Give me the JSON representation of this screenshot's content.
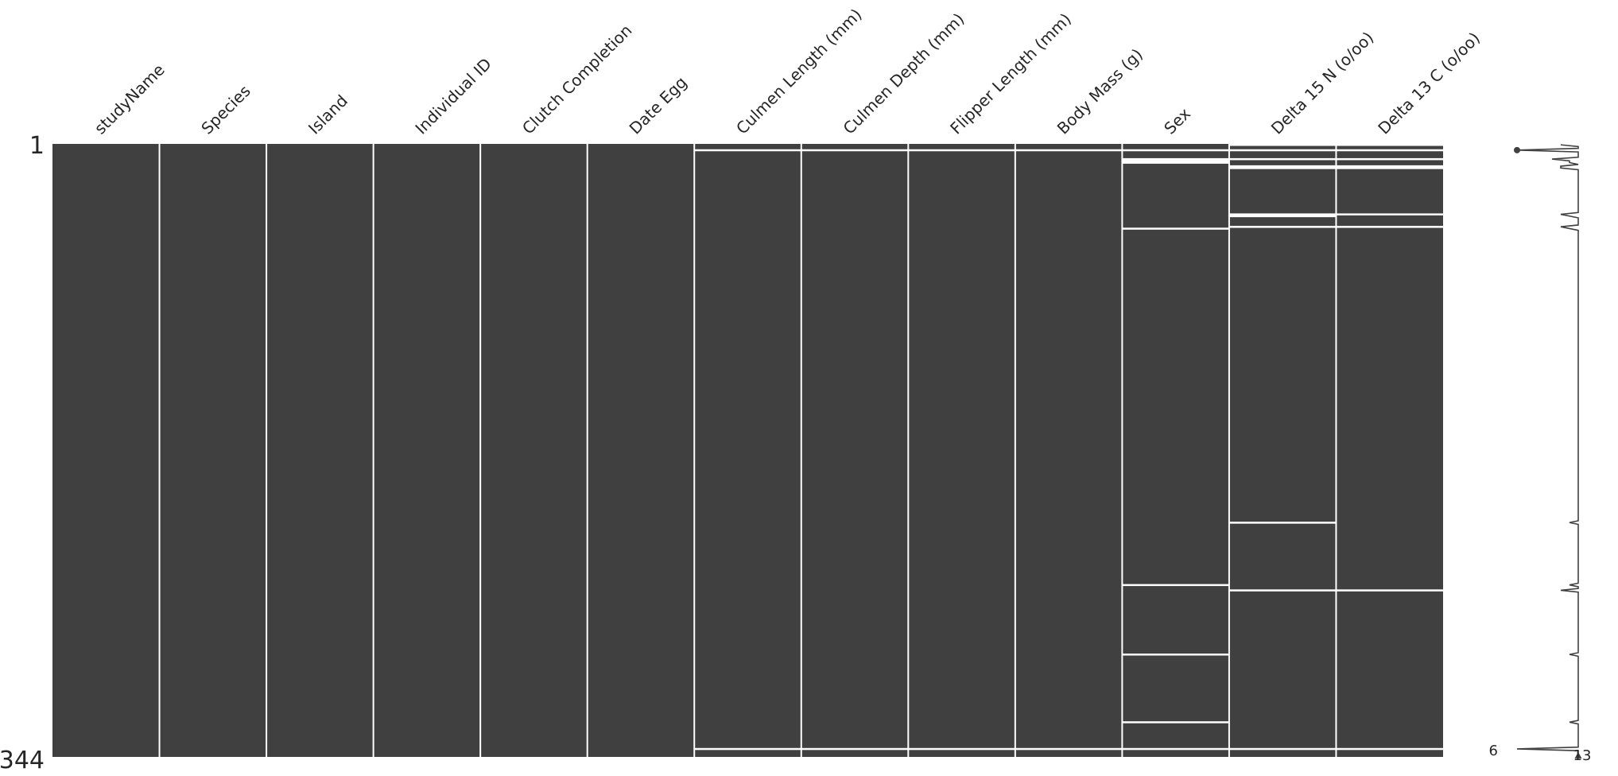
{
  "chart_data": {
    "type": "heatmap",
    "title": "",
    "row_range": [
      "1",
      "344"
    ],
    "n_rows": 344,
    "columns": [
      {
        "name": "studyName",
        "missing_rows": []
      },
      {
        "name": "Species",
        "missing_rows": []
      },
      {
        "name": "Island",
        "missing_rows": []
      },
      {
        "name": "Individual ID",
        "missing_rows": []
      },
      {
        "name": "Clutch Completion",
        "missing_rows": []
      },
      {
        "name": "Date Egg",
        "missing_rows": []
      },
      {
        "name": "Culmen Length (mm)",
        "missing_rows": [
          4,
          340
        ]
      },
      {
        "name": "Culmen Depth (mm)",
        "missing_rows": [
          4,
          340
        ]
      },
      {
        "name": "Flipper Length (mm)",
        "missing_rows": [
          4,
          340
        ]
      },
      {
        "name": "Body Mass (g)",
        "missing_rows": [
          4,
          340
        ]
      },
      {
        "name": "Sex",
        "missing_rows": [
          4,
          9,
          10,
          11,
          48,
          248,
          287,
          325,
          340
        ]
      },
      {
        "name": "Delta 15 N (o/oo)",
        "missing_rows": [
          1,
          4,
          9,
          13,
          14,
          40,
          41,
          47,
          213,
          251,
          340
        ]
      },
      {
        "name": "Delta 13 C (o/oo)",
        "missing_rows": [
          1,
          4,
          9,
          13,
          14,
          40,
          47,
          251,
          340
        ]
      }
    ],
    "sparkline": {
      "min_label": "6",
      "max_label": "13",
      "min_value": 6,
      "max_value": 13
    },
    "colors": {
      "present": "#404040",
      "missing": "#ffffff",
      "sparkline": "#404040"
    }
  }
}
